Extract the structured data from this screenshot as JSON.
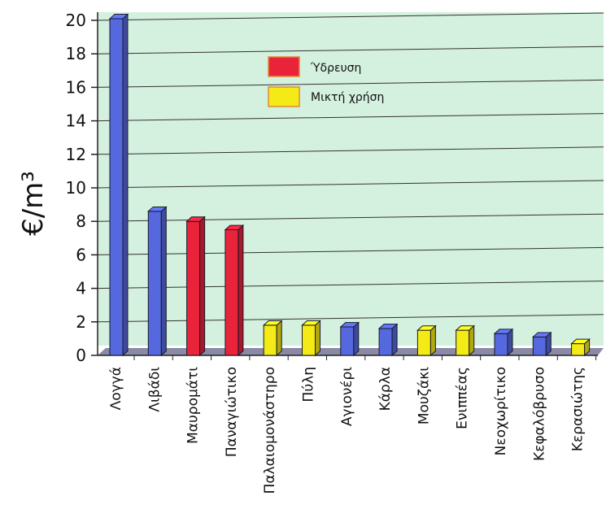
{
  "chart_data": {
    "type": "bar",
    "ylabel": "€/m³",
    "ylim": [
      0,
      20
    ],
    "yticks": [
      0,
      2,
      4,
      6,
      8,
      10,
      12,
      14,
      16,
      18,
      20
    ],
    "grid": true,
    "legend_position": "top-center",
    "categories": [
      "Λογγά",
      "Λιβάδι",
      "Μαυρομάτι",
      "Παναγιώτικο",
      "Παλαιομονάστηρο",
      "Πύλη",
      "Αγιονέρι",
      "Κάρλα",
      "Μουζάκι",
      "Ενιππέας",
      "Νεοχωρίτικο",
      "Κεφαλόβρυσο",
      "Κερασιώτης"
    ],
    "values": [
      20.1,
      8.6,
      8.0,
      7.5,
      1.8,
      1.8,
      1.7,
      1.6,
      1.5,
      1.5,
      1.3,
      1.1,
      0.7
    ],
    "bar_types": [
      "other",
      "other",
      "supply",
      "supply",
      "mixed",
      "mixed",
      "other",
      "other",
      "mixed",
      "mixed",
      "other",
      "other",
      "mixed"
    ],
    "legend": [
      {
        "key": "supply",
        "label": "Ύδρευση",
        "color": "#e8233a"
      },
      {
        "key": "mixed",
        "label": "Μικτή χρήση",
        "color": "#f4ea16"
      }
    ],
    "colors": {
      "other": "#5568dd",
      "supply": "#e8233a",
      "mixed": "#f4ea16",
      "plot_background": "#d4f0df",
      "floor": "#8a8aa6"
    }
  }
}
